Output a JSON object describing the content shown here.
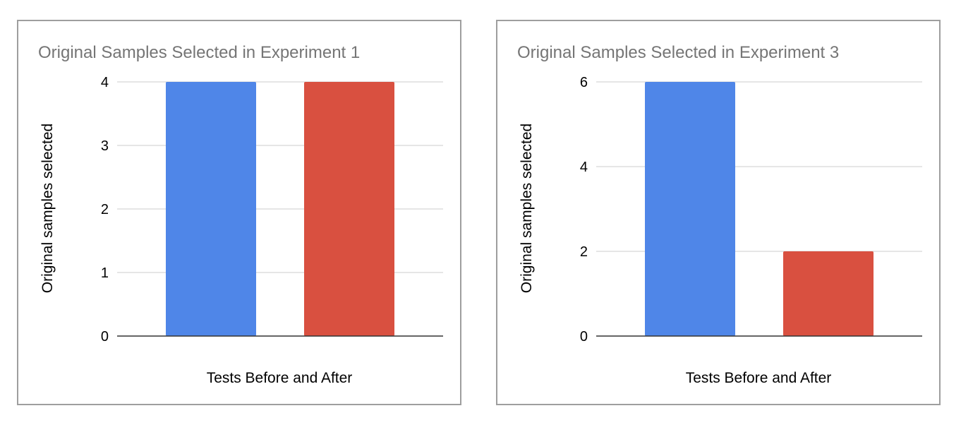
{
  "chart_data": [
    {
      "type": "bar",
      "title": "Original Samples Selected in Experiment 1",
      "xlabel": "Tests Before and After",
      "ylabel": "Original samples selected",
      "ylim": [
        0,
        4
      ],
      "yticks": [
        0,
        1,
        2,
        3,
        4
      ],
      "grid": true,
      "legend": "none",
      "values": [
        4,
        4
      ],
      "colors": [
        "#4f86e8",
        "#d95040"
      ]
    },
    {
      "type": "bar",
      "title": "Original Samples Selected in Experiment 3",
      "xlabel": "Tests Before and After",
      "ylabel": "Original samples selected",
      "ylim": [
        0,
        6
      ],
      "yticks": [
        0,
        2,
        4,
        6
      ],
      "grid": true,
      "legend": "none",
      "values": [
        6,
        2
      ],
      "colors": [
        "#4f86e8",
        "#d95040"
      ]
    }
  ]
}
